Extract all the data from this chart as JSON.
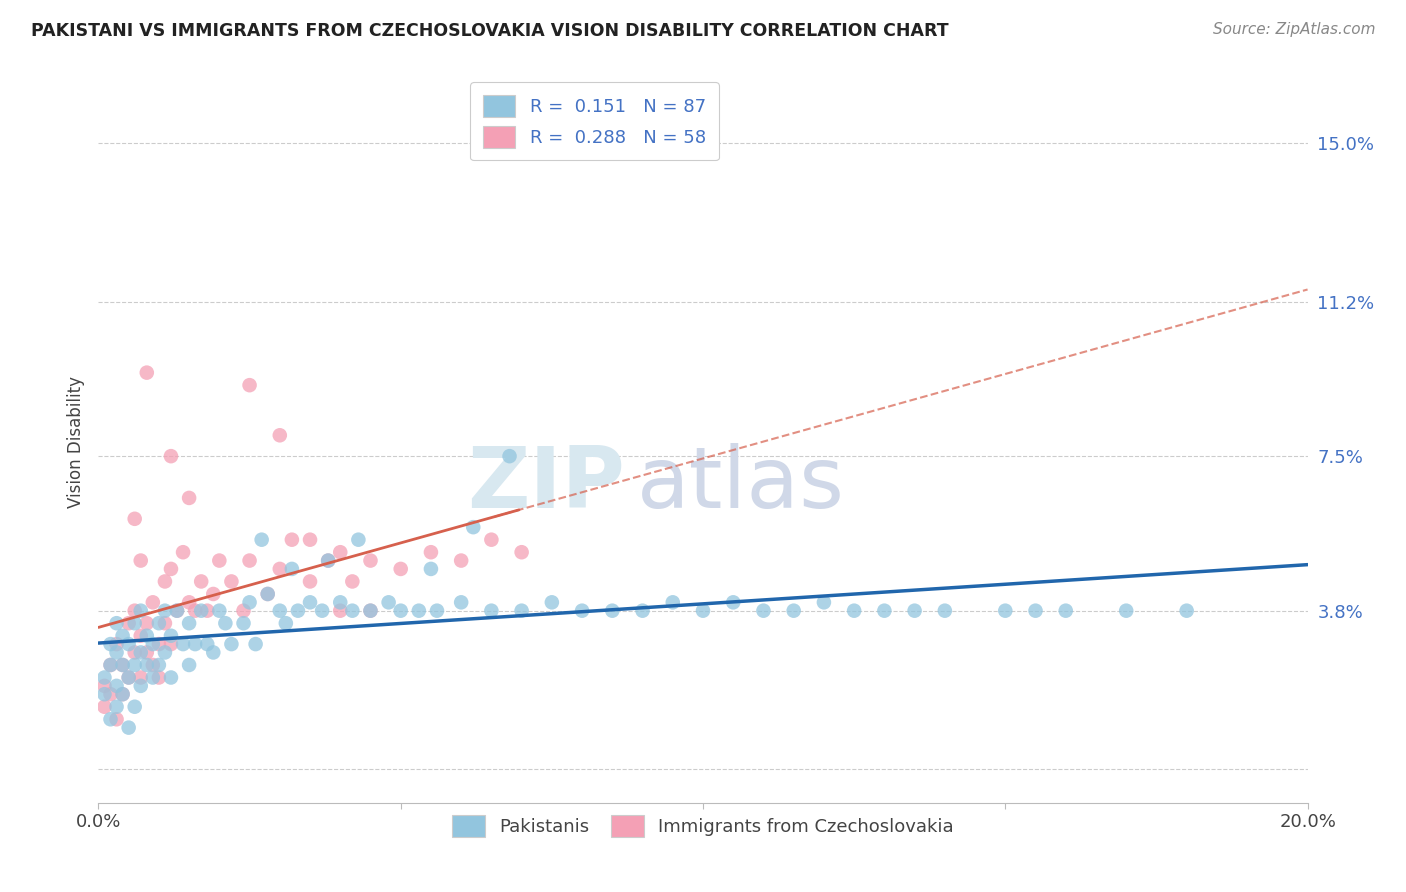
{
  "title": "PAKISTANI VS IMMIGRANTS FROM CZECHOSLOVAKIA VISION DISABILITY CORRELATION CHART",
  "source": "Source: ZipAtlas.com",
  "ylabel": "Vision Disability",
  "xlim": [
    0.0,
    0.2
  ],
  "ylim": [
    -0.008,
    0.165
  ],
  "yticks": [
    0.0,
    0.038,
    0.075,
    0.112,
    0.15
  ],
  "ytick_labels": [
    "",
    "3.8%",
    "7.5%",
    "11.2%",
    "15.0%"
  ],
  "xticks": [
    0.0,
    0.05,
    0.1,
    0.15,
    0.2
  ],
  "xtick_labels": [
    "0.0%",
    "",
    "",
    "",
    "20.0%"
  ],
  "blue_color": "#92c5de",
  "pink_color": "#f4a0b5",
  "trend_blue": "#2166ac",
  "trend_pink": "#d6604d",
  "watermark_zip": "ZIP",
  "watermark_atlas": "atlas",
  "pakistanis_label": "Pakistanis",
  "czechs_label": "Immigrants from Czechoslovakia",
  "blue_R": 0.151,
  "blue_N": 87,
  "pink_R": 0.288,
  "pink_N": 58,
  "blue_scatter_x": [
    0.001,
    0.001,
    0.002,
    0.002,
    0.002,
    0.003,
    0.003,
    0.003,
    0.003,
    0.004,
    0.004,
    0.004,
    0.005,
    0.005,
    0.005,
    0.006,
    0.006,
    0.006,
    0.007,
    0.007,
    0.007,
    0.008,
    0.008,
    0.009,
    0.009,
    0.01,
    0.01,
    0.011,
    0.011,
    0.012,
    0.012,
    0.013,
    0.014,
    0.015,
    0.015,
    0.016,
    0.017,
    0.018,
    0.019,
    0.02,
    0.021,
    0.022,
    0.024,
    0.025,
    0.026,
    0.028,
    0.03,
    0.031,
    0.033,
    0.035,
    0.037,
    0.04,
    0.042,
    0.045,
    0.048,
    0.05,
    0.053,
    0.056,
    0.06,
    0.065,
    0.07,
    0.075,
    0.08,
    0.085,
    0.09,
    0.095,
    0.1,
    0.105,
    0.11,
    0.115,
    0.12,
    0.125,
    0.13,
    0.135,
    0.14,
    0.15,
    0.155,
    0.16,
    0.17,
    0.18,
    0.027,
    0.032,
    0.038,
    0.043,
    0.055,
    0.062,
    0.068
  ],
  "blue_scatter_y": [
    0.022,
    0.018,
    0.03,
    0.012,
    0.025,
    0.02,
    0.028,
    0.015,
    0.035,
    0.018,
    0.025,
    0.032,
    0.022,
    0.03,
    0.01,
    0.025,
    0.035,
    0.015,
    0.028,
    0.02,
    0.038,
    0.025,
    0.032,
    0.022,
    0.03,
    0.035,
    0.025,
    0.038,
    0.028,
    0.032,
    0.022,
    0.038,
    0.03,
    0.035,
    0.025,
    0.03,
    0.038,
    0.03,
    0.028,
    0.038,
    0.035,
    0.03,
    0.035,
    0.04,
    0.03,
    0.042,
    0.038,
    0.035,
    0.038,
    0.04,
    0.038,
    0.04,
    0.038,
    0.038,
    0.04,
    0.038,
    0.038,
    0.038,
    0.04,
    0.038,
    0.038,
    0.04,
    0.038,
    0.038,
    0.038,
    0.04,
    0.038,
    0.04,
    0.038,
    0.038,
    0.04,
    0.038,
    0.038,
    0.038,
    0.038,
    0.038,
    0.038,
    0.038,
    0.038,
    0.038,
    0.055,
    0.048,
    0.05,
    0.055,
    0.048,
    0.058,
    0.075
  ],
  "pink_scatter_x": [
    0.001,
    0.001,
    0.002,
    0.002,
    0.003,
    0.003,
    0.004,
    0.004,
    0.005,
    0.005,
    0.006,
    0.006,
    0.006,
    0.007,
    0.007,
    0.007,
    0.008,
    0.008,
    0.009,
    0.009,
    0.01,
    0.01,
    0.011,
    0.011,
    0.012,
    0.012,
    0.013,
    0.014,
    0.015,
    0.016,
    0.017,
    0.018,
    0.019,
    0.02,
    0.022,
    0.024,
    0.025,
    0.028,
    0.03,
    0.032,
    0.035,
    0.038,
    0.04,
    0.042,
    0.045,
    0.05,
    0.055,
    0.06,
    0.065,
    0.07,
    0.008,
    0.012,
    0.015,
    0.025,
    0.03,
    0.035,
    0.04,
    0.045
  ],
  "pink_scatter_y": [
    0.02,
    0.015,
    0.025,
    0.018,
    0.03,
    0.012,
    0.025,
    0.018,
    0.022,
    0.035,
    0.06,
    0.028,
    0.038,
    0.05,
    0.032,
    0.022,
    0.028,
    0.035,
    0.025,
    0.04,
    0.03,
    0.022,
    0.035,
    0.045,
    0.03,
    0.048,
    0.038,
    0.052,
    0.04,
    0.038,
    0.045,
    0.038,
    0.042,
    0.05,
    0.045,
    0.038,
    0.05,
    0.042,
    0.048,
    0.055,
    0.045,
    0.05,
    0.052,
    0.045,
    0.05,
    0.048,
    0.052,
    0.05,
    0.055,
    0.052,
    0.095,
    0.075,
    0.065,
    0.092,
    0.08,
    0.055,
    0.038,
    0.038
  ]
}
